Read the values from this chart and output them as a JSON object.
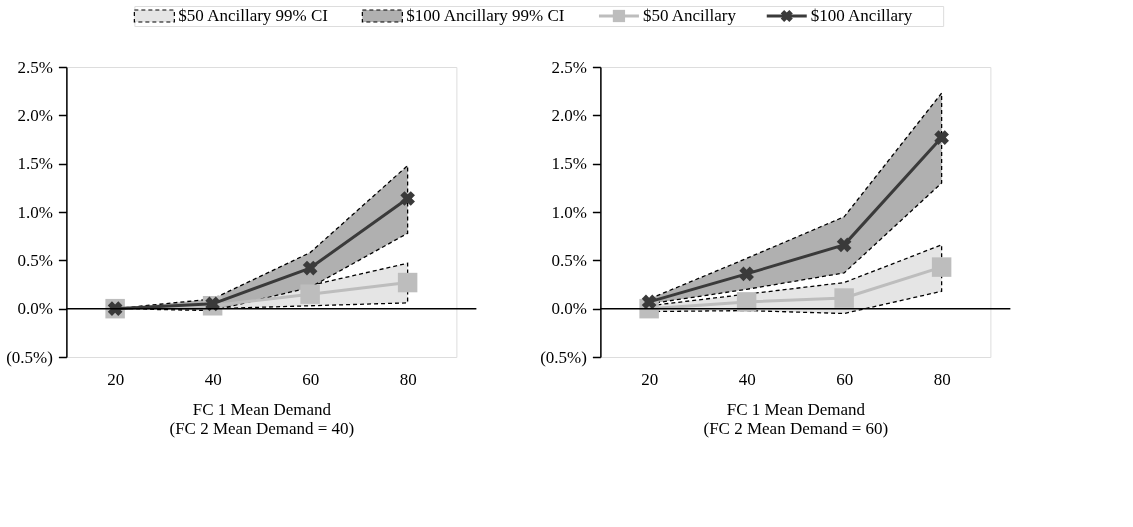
{
  "chart_data": [
    {
      "type": "line",
      "xlabel": "FC 1 Mean Demand\n(FC 2 Mean Demand = 40)",
      "categories": [
        "20",
        "40",
        "60",
        "80"
      ],
      "ylim": [
        -0.5,
        2.5
      ],
      "yticks": [
        {
          "value": -0.5,
          "label": "(0.5%)"
        },
        {
          "value": 0,
          "label": "0.0%"
        },
        {
          "value": 0.5,
          "label": "0.5%"
        },
        {
          "value": 1.0,
          "label": "1.0%"
        },
        {
          "value": 1.5,
          "label": "1.5%"
        },
        {
          "value": 2.0,
          "label": "2.0%"
        },
        {
          "value": 2.5,
          "label": "2.5%"
        }
      ],
      "grid": false,
      "legend": "top",
      "ref_lines": [
        {
          "axis": "y",
          "value": 0,
          "label": null,
          "color": "#000000",
          "line_style": "solid"
        }
      ],
      "annotations": [
        "$50 Ancillary 99% CI",
        "$100 Ancillary 99% CI"
      ],
      "series": [
        {
          "name": "$50 Ancillary",
          "type": "line",
          "color": "#bdbdbd",
          "marker": "square",
          "line_style": "solid",
          "values": [
            0,
            0.03,
            0.15,
            0.27
          ],
          "lower": [
            0,
            0,
            0.03,
            0.06
          ],
          "upper": [
            0,
            0.07,
            0.24,
            0.47
          ]
        },
        {
          "name": "$100 Ancillary",
          "type": "line",
          "color": "#3a3a3a",
          "marker": "cross",
          "line_style": "solid",
          "values": [
            0,
            0.05,
            0.42,
            1.14
          ],
          "lower": [
            0,
            -0.02,
            0.22,
            0.78
          ],
          "upper": [
            0,
            0.1,
            0.58,
            1.48
          ]
        }
      ]
    },
    {
      "type": "line",
      "xlabel": "FC 1 Mean Demand\n(FC 2 Mean Demand = 60)",
      "categories": [
        "20",
        "40",
        "60",
        "80"
      ],
      "ylim": [
        -0.5,
        2.5
      ],
      "yticks": [
        {
          "value": -0.5,
          "label": "(0.5%)"
        },
        {
          "value": 0,
          "label": "0.0%"
        },
        {
          "value": 0.5,
          "label": "0.5%"
        },
        {
          "value": 1.0,
          "label": "1.0%"
        },
        {
          "value": 1.5,
          "label": "1.5%"
        },
        {
          "value": 2.0,
          "label": "2.0%"
        },
        {
          "value": 2.5,
          "label": "2.5%"
        }
      ],
      "grid": false,
      "legend": false,
      "ref_lines": [
        {
          "axis": "y",
          "value": 0,
          "label": null,
          "color": "#000000",
          "line_style": "solid"
        }
      ],
      "series": [
        {
          "type": "line",
          "color": "#bdbdbd",
          "marker": "square",
          "line_style": "solid",
          "values": [
            0,
            0.07,
            0.11,
            0.43
          ],
          "lower": [
            -0.03,
            -0.02,
            -0.05,
            0.18
          ],
          "upper": [
            0.03,
            0.15,
            0.27,
            0.66
          ]
        },
        {
          "type": "line",
          "color": "#3a3a3a",
          "marker": "cross",
          "line_style": "solid",
          "values": [
            0.07,
            0.36,
            0.66,
            1.77
          ],
          "lower": [
            0.05,
            0.2,
            0.37,
            1.3
          ],
          "upper": [
            0.1,
            0.52,
            0.95,
            2.23
          ]
        }
      ]
    }
  ]
}
